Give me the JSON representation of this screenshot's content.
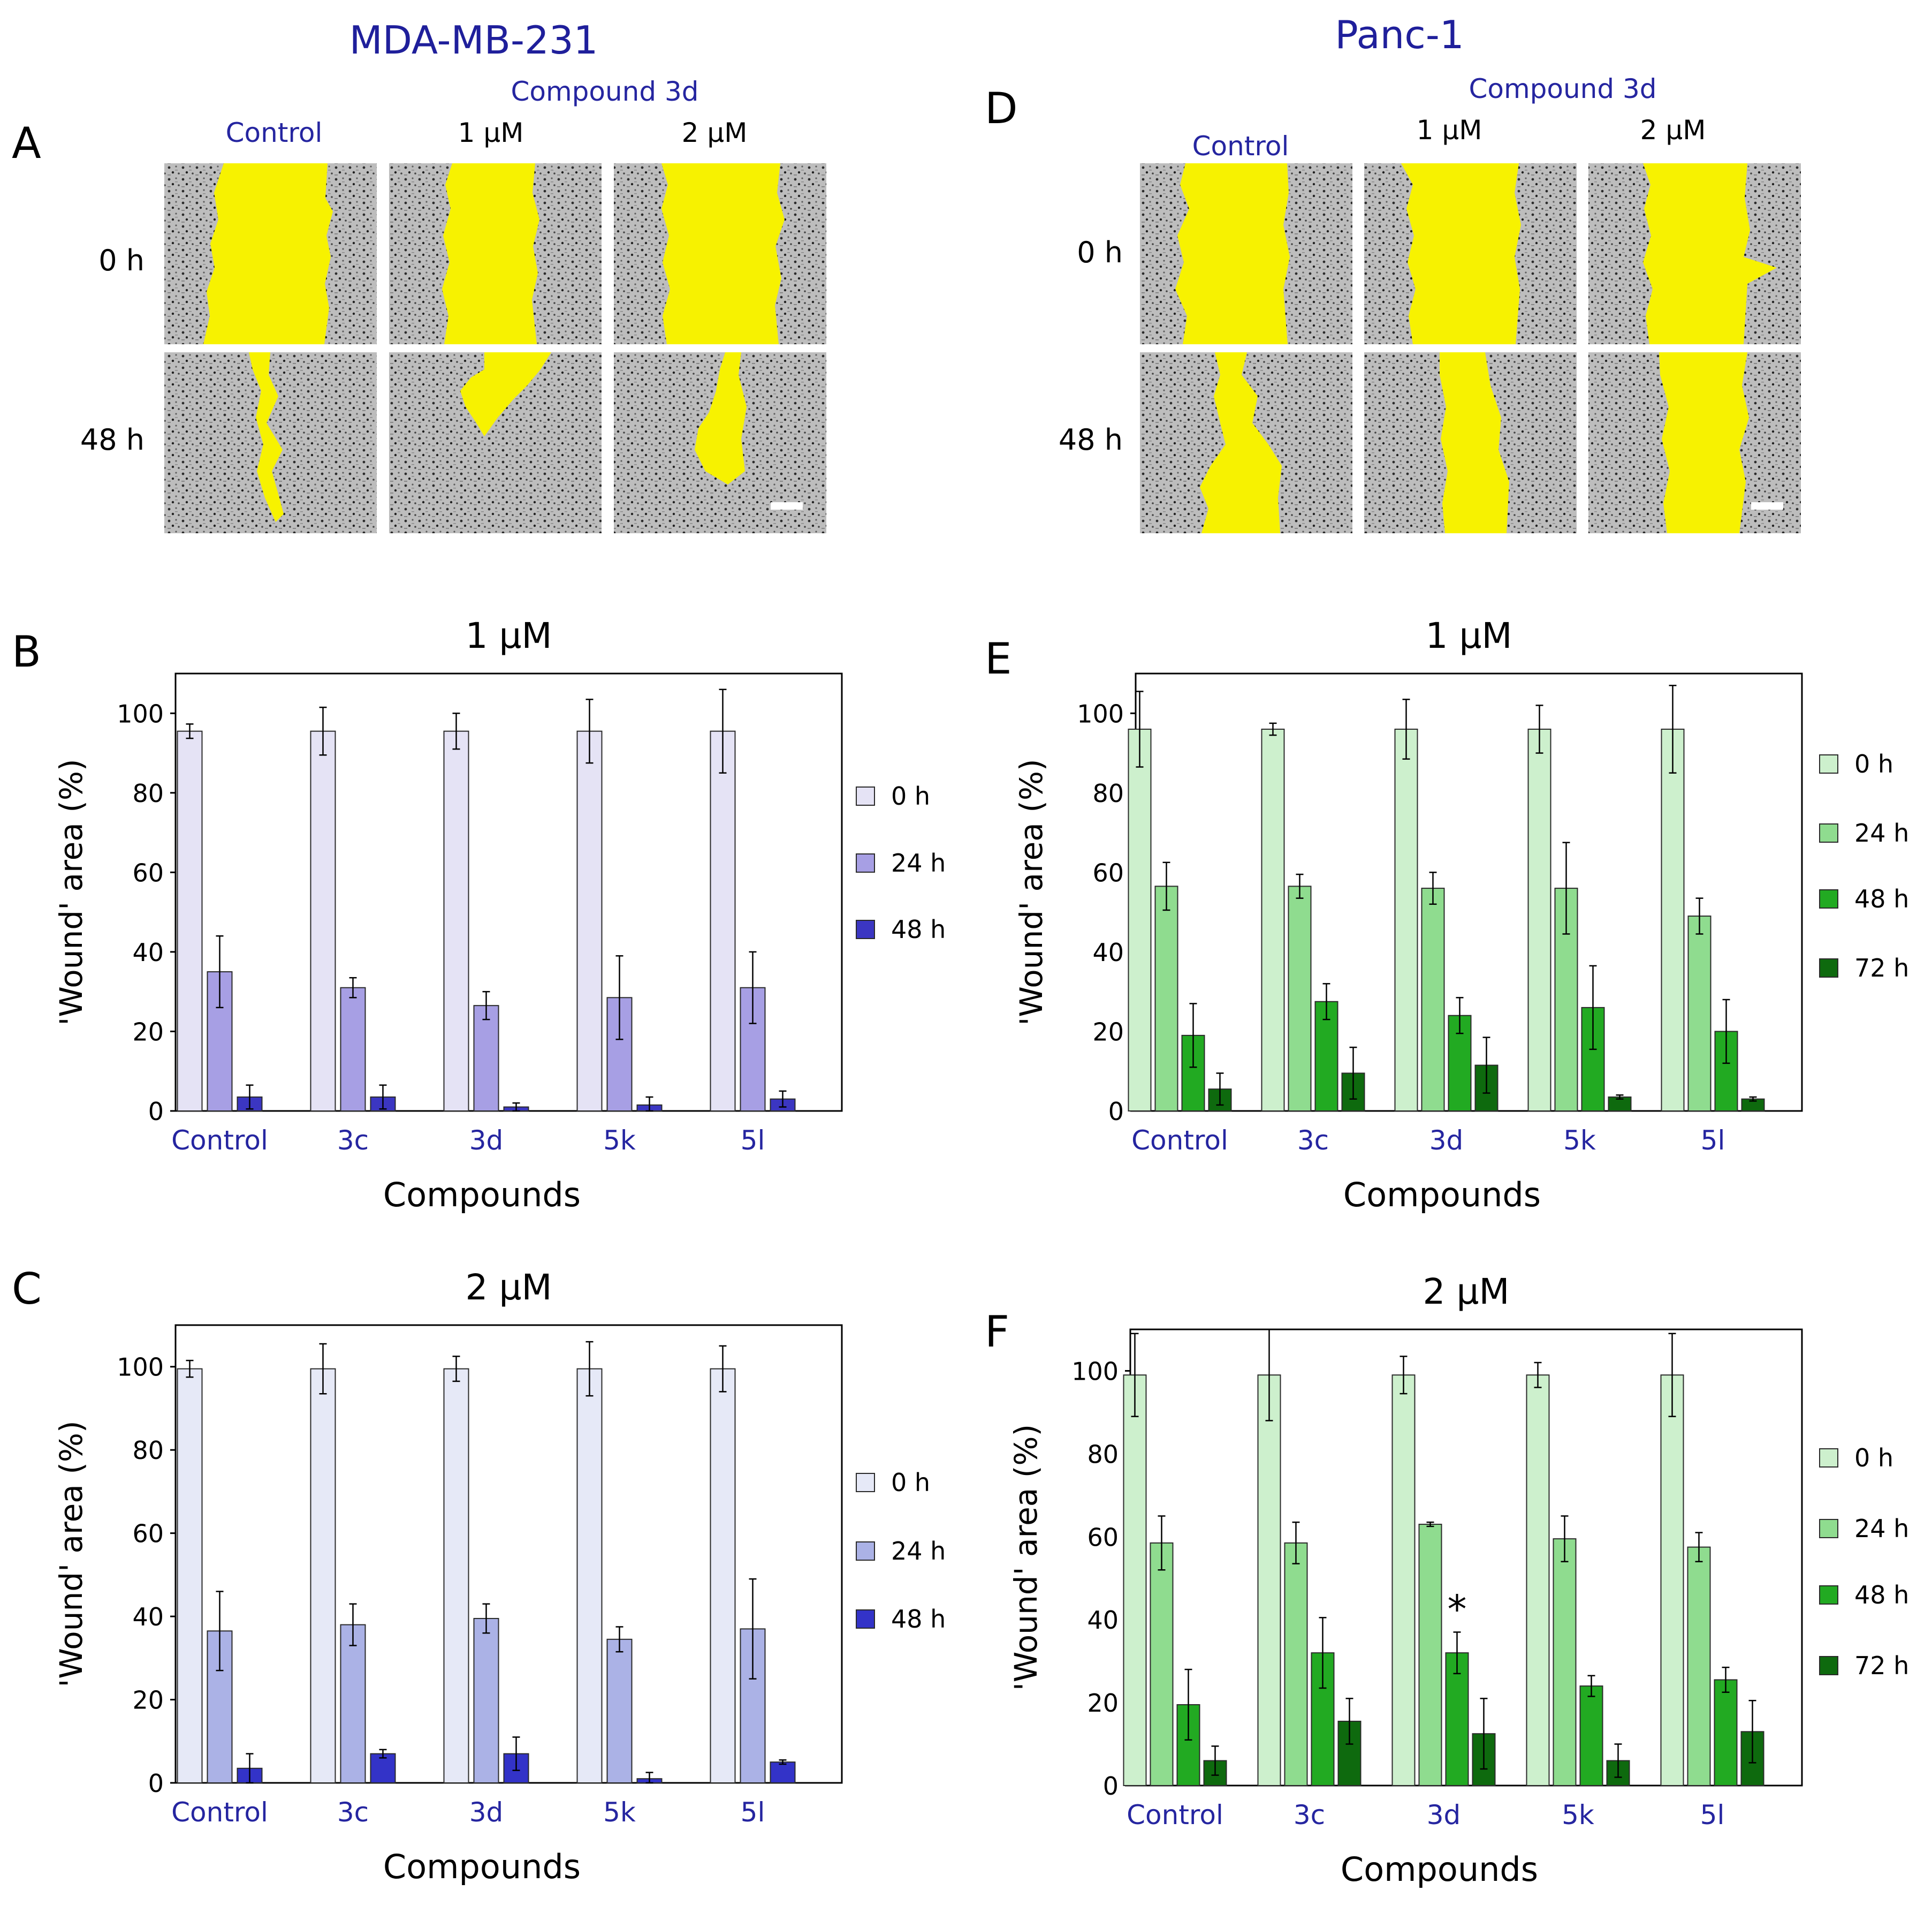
{
  "figure": {
    "left_title": "MDA-MB-231",
    "right_title": "Panc-1",
    "colors": {
      "title_blue": "#1f1f9b",
      "category_blue": "#2525a0",
      "wound_yellow": "#f7f200",
      "micrograph_bg": "#b9b9b9",
      "purple_series": [
        "#e5e3f5",
        "#a79fe4",
        "#3b36c2"
      ],
      "lavender_series": [
        "#e6e9f7",
        "#abb2e6",
        "#3333c8"
      ],
      "green_series": [
        "#cdf0cd",
        "#8fdc8f",
        "#22aa22",
        "#0e6a0e"
      ]
    }
  },
  "micrograph_panels": [
    {
      "id": "A",
      "compound_label": "Compound 3d",
      "columns": [
        "Control",
        "1 μM",
        "2 μM"
      ],
      "rows": [
        "0 h",
        "48 h"
      ]
    },
    {
      "id": "D",
      "compound_label": "Compound 3d",
      "columns": [
        "Control",
        "1 μM",
        "2 μM"
      ],
      "rows": [
        "0 h",
        "48 h"
      ]
    }
  ],
  "chart_data": [
    {
      "id": "B",
      "type": "bar",
      "title": "1 μM",
      "xlabel": "Compounds",
      "ylabel": "'Wound' area (%)",
      "ylim": [
        0,
        110
      ],
      "yticks": [
        0,
        20,
        40,
        60,
        80,
        100
      ],
      "categories": [
        "Control",
        "3c",
        "3d",
        "5k",
        "5l"
      ],
      "palette": "purple_series",
      "series": [
        {
          "name": "0 h",
          "values": [
            95.5,
            95.5,
            95.5,
            95.5,
            95.5
          ],
          "errors": [
            1.8,
            6,
            4.5,
            8,
            10.5
          ]
        },
        {
          "name": "24 h",
          "values": [
            35,
            31,
            26.5,
            28.5,
            31
          ],
          "errors": [
            9,
            2.5,
            3.5,
            10.5,
            9
          ]
        },
        {
          "name": "48 h",
          "values": [
            3.5,
            3.5,
            1,
            1.5,
            3
          ],
          "errors": [
            3,
            3,
            1,
            2,
            2
          ]
        }
      ],
      "annotations": []
    },
    {
      "id": "C",
      "type": "bar",
      "title": "2 μM",
      "xlabel": "Compounds",
      "ylabel": "'Wound' area (%)",
      "ylim": [
        0,
        110
      ],
      "yticks": [
        0,
        20,
        40,
        60,
        80,
        100
      ],
      "categories": [
        "Control",
        "3c",
        "3d",
        "5k",
        "5l"
      ],
      "palette": "lavender_series",
      "series": [
        {
          "name": "0 h",
          "values": [
            99.5,
            99.5,
            99.5,
            99.5,
            99.5
          ],
          "errors": [
            2,
            6,
            3,
            6.5,
            5.5
          ]
        },
        {
          "name": "24 h",
          "values": [
            36.5,
            38,
            39.5,
            34.5,
            37
          ],
          "errors": [
            9.5,
            5,
            3.5,
            3,
            12
          ]
        },
        {
          "name": "48 h",
          "values": [
            3.5,
            7,
            7,
            1,
            5
          ],
          "errors": [
            3.5,
            1,
            4,
            1.5,
            0.5
          ]
        }
      ],
      "annotations": []
    },
    {
      "id": "E",
      "type": "bar",
      "title": "1 μM",
      "xlabel": "Compounds",
      "ylabel": "'Wound' area (%)",
      "ylim": [
        0,
        110
      ],
      "yticks": [
        0,
        20,
        40,
        60,
        80,
        100
      ],
      "categories": [
        "Control",
        "3c",
        "3d",
        "5k",
        "5l"
      ],
      "palette": "green_series",
      "series": [
        {
          "name": "0 h",
          "values": [
            96,
            96,
            96,
            96,
            96
          ],
          "errors": [
            9.5,
            1.5,
            7.5,
            6,
            11
          ]
        },
        {
          "name": "24 h",
          "values": [
            56.5,
            56.5,
            56,
            56,
            49
          ],
          "errors": [
            6,
            3,
            4,
            11.5,
            4.5
          ]
        },
        {
          "name": "48 h",
          "values": [
            19,
            27.5,
            24,
            26,
            20
          ],
          "errors": [
            8,
            4.5,
            4.5,
            10.5,
            8
          ]
        },
        {
          "name": "72 h",
          "values": [
            5.5,
            9.5,
            11.5,
            3.5,
            3
          ],
          "errors": [
            4,
            6.5,
            7,
            0.5,
            0.5
          ]
        }
      ],
      "annotations": []
    },
    {
      "id": "F",
      "type": "bar",
      "title": "2 μM",
      "xlabel": "Compounds",
      "ylabel": "'Wound' area (%)",
      "ylim": [
        0,
        110
      ],
      "yticks": [
        0,
        20,
        40,
        60,
        80,
        100
      ],
      "categories": [
        "Control",
        "3c",
        "3d",
        "5k",
        "5l"
      ],
      "palette": "green_series",
      "series": [
        {
          "name": "0 h",
          "values": [
            99,
            99,
            99,
            99,
            99
          ],
          "errors": [
            10,
            11,
            4.5,
            3,
            10
          ]
        },
        {
          "name": "24 h",
          "values": [
            58.5,
            58.5,
            63,
            59.5,
            57.5
          ],
          "errors": [
            6.5,
            5,
            0.5,
            5.5,
            3.5
          ]
        },
        {
          "name": "48 h",
          "values": [
            19.5,
            32,
            32,
            24,
            25.5
          ],
          "errors": [
            8.5,
            8.5,
            5,
            2.5,
            3
          ]
        },
        {
          "name": "72 h",
          "values": [
            6,
            15.5,
            12.5,
            6,
            13
          ],
          "errors": [
            3.5,
            5.5,
            8.5,
            4,
            7.5
          ]
        }
      ],
      "annotations": [
        {
          "category": "3d",
          "series": "48 h",
          "text": "*"
        }
      ]
    }
  ]
}
